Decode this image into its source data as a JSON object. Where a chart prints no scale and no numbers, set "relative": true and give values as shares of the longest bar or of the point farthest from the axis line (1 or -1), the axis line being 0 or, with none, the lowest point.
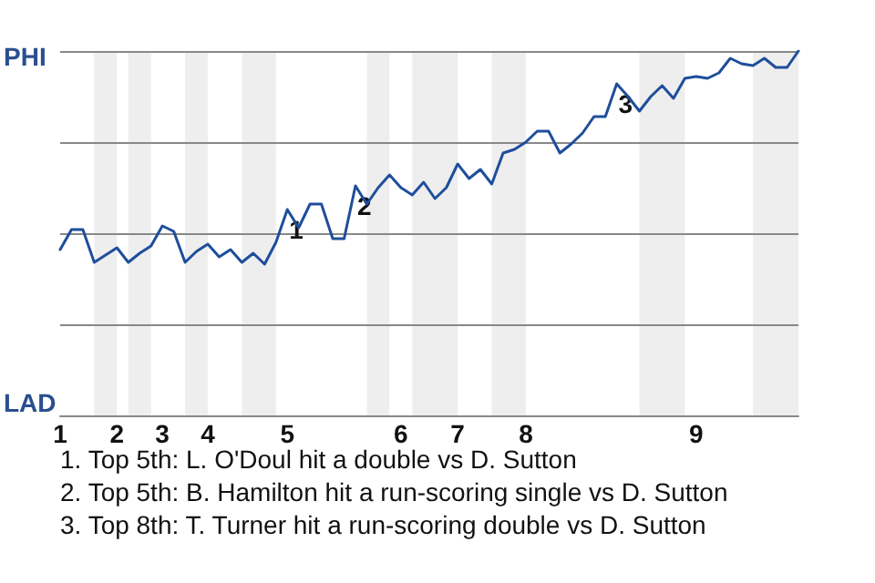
{
  "chart_data": {
    "type": "line",
    "relative": true,
    "categories": [
      "1",
      null,
      null,
      null,
      null,
      "2",
      null,
      null,
      null,
      "3",
      null,
      null,
      null,
      "4",
      null,
      null,
      null,
      null,
      null,
      null,
      "5",
      null,
      null,
      null,
      null,
      null,
      null,
      null,
      null,
      null,
      "6",
      null,
      null,
      null,
      null,
      "7",
      null,
      null,
      null,
      null,
      null,
      "8",
      null,
      null,
      null,
      null,
      null,
      null,
      null,
      null,
      null,
      null,
      null,
      null,
      null,
      null,
      "9",
      null,
      null,
      null,
      null,
      null,
      null,
      null,
      null,
      null
    ],
    "series": [
      {
        "color": "#1f4e9c",
        "values": [
          0.455,
          0.51,
          0.51,
          0.42,
          0.44,
          0.46,
          0.42,
          0.445,
          0.465,
          0.52,
          0.505,
          0.42,
          0.45,
          0.47,
          0.435,
          0.455,
          0.42,
          0.445,
          0.415,
          0.475,
          0.565,
          0.515,
          0.58,
          0.58,
          0.485,
          0.485,
          0.63,
          0.58,
          0.625,
          0.66,
          0.625,
          0.605,
          0.64,
          0.595,
          0.625,
          0.69,
          0.65,
          0.675,
          0.635,
          0.72,
          0.73,
          0.75,
          0.78,
          0.78,
          0.72,
          0.745,
          0.775,
          0.82,
          0.82,
          0.91,
          0.875,
          0.835,
          0.875,
          0.905,
          0.87,
          0.925,
          0.93,
          0.925,
          0.94,
          0.98,
          0.965,
          0.96,
          0.98,
          0.955,
          0.955,
          1
        ]
      }
    ],
    "grid": "y",
    "marker": "none",
    "annotations": [
      "PHI",
      "LAD",
      {
        "text": "1",
        "y": 0.565
      },
      {
        "text": "2",
        "y": 0.63
      },
      {
        "text": "3",
        "y": 0.91
      },
      "1. Top 5th: L. O'Doul hit a double vs D. Sutton",
      "2. Top 5th: B. Hamilton hit a run-scoring single vs D. Sutton",
      "3. Top 8th: T. Turner hit a run-scoring double vs D. Sutton"
    ]
  }
}
